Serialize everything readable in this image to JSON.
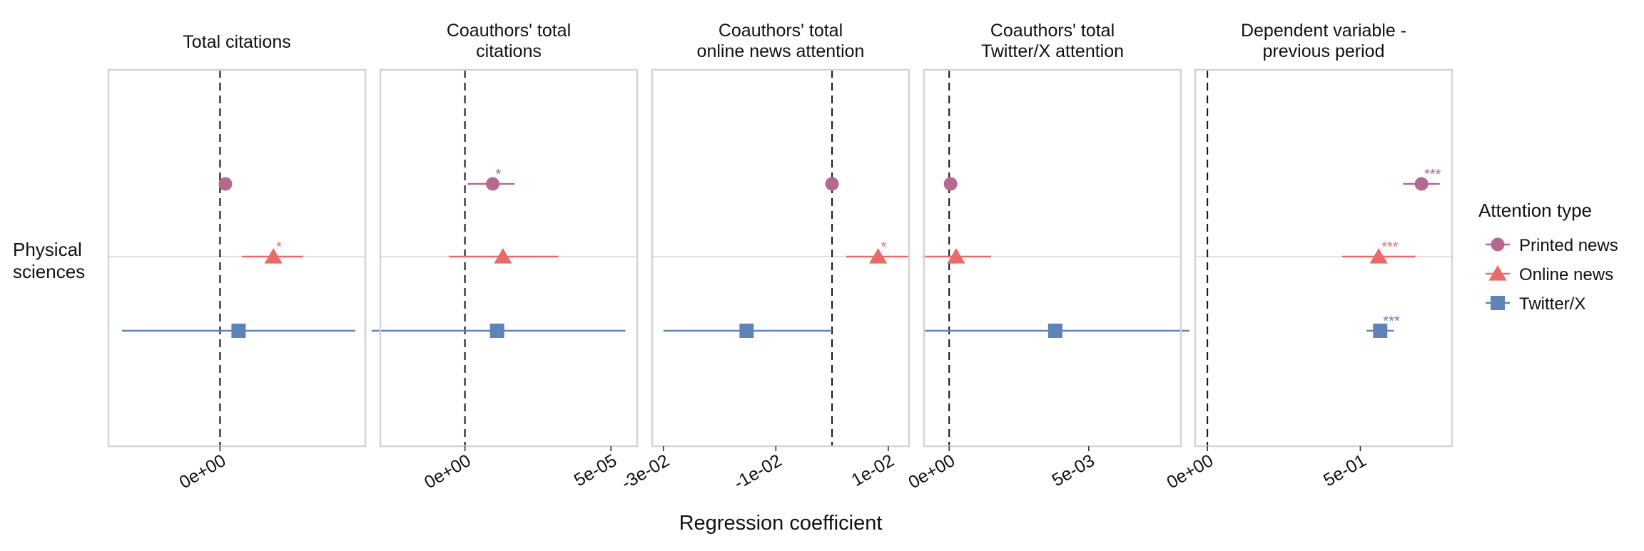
{
  "chart_data": {
    "type": "scatter",
    "subtype": "coefficient plot with error bars, faceted",
    "row_label": "Physical\nsciences",
    "xlabel": "Regression coefficient",
    "ylabel": "",
    "legend": {
      "title": "Attention type",
      "position": "right",
      "entries": [
        {
          "name": "Printed news",
          "color": "#b5698f",
          "marker": "circle"
        },
        {
          "name": "Online news",
          "color": "#ea6a6a",
          "marker": "triangle"
        },
        {
          "name": "Twitter/X",
          "color": "#5f83b6",
          "marker": "square"
        }
      ]
    },
    "reference_line": {
      "x": 0,
      "style": "dashed"
    },
    "grid": "horizontal line at row center",
    "facets": [
      {
        "title": "Total citations",
        "xlim": [
          -3.3e-05,
          4.3e-05
        ],
        "ticks": [
          {
            "value": 0,
            "label": "0e+00"
          }
        ],
        "series": [
          {
            "name": "Printed news",
            "estimate": 1.6e-06,
            "lower": 1.2e-06,
            "upper": 2e-06,
            "signif": ""
          },
          {
            "name": "Online news",
            "estimate": 1.58e-05,
            "lower": 6.5e-06,
            "upper": 2.45e-05,
            "signif": "*"
          },
          {
            "name": "Twitter/X",
            "estimate": 5.5e-06,
            "lower": -2.9e-05,
            "upper": 4e-05,
            "signif": ""
          }
        ]
      },
      {
        "title": "Coauthors' total\ncitations",
        "xlim": [
          -2.9e-05,
          5.9e-05
        ],
        "ticks": [
          {
            "value": 0,
            "label": "0e+00"
          },
          {
            "value": 5e-05,
            "label": "5e-05"
          }
        ],
        "series": [
          {
            "name": "Printed news",
            "estimate": 9.5e-06,
            "lower": 1e-06,
            "upper": 1.7e-05,
            "signif": "*"
          },
          {
            "name": "Online news",
            "estimate": 1.3e-05,
            "lower": -5.5e-06,
            "upper": 3.2e-05,
            "signif": ""
          },
          {
            "name": "Twitter/X",
            "estimate": 1.1e-05,
            "lower": -3.2e-05,
            "upper": 5.5e-05,
            "signif": ""
          }
        ]
      },
      {
        "title": "Coauthors' total\nonline news attention",
        "xlim": [
          -0.032,
          0.0137
        ],
        "ticks": [
          {
            "value": -0.03,
            "label": "-3e-02"
          },
          {
            "value": -0.01,
            "label": "-1e-02"
          },
          {
            "value": 0.01,
            "label": "1e-02"
          }
        ],
        "series": [
          {
            "name": "Printed news",
            "estimate": 0,
            "lower": -0.0003,
            "upper": 0.0003,
            "signif": ""
          },
          {
            "name": "Online news",
            "estimate": 0.0082,
            "lower": 0.0025,
            "upper": 0.0138,
            "signif": "*"
          },
          {
            "name": "Twitter/X",
            "estimate": -0.0152,
            "lower": -0.03,
            "upper": 0,
            "signif": ""
          }
        ]
      },
      {
        "title": "Coauthors' total\nTwitter/X attention",
        "xlim": [
          -0.0009,
          0.0083
        ],
        "ticks": [
          {
            "value": 0,
            "label": "0e+00"
          },
          {
            "value": 0.005,
            "label": "5e-03"
          }
        ],
        "series": [
          {
            "name": "Printed news",
            "estimate": 5e-05,
            "lower": 2e-05,
            "upper": 8e-05,
            "signif": ""
          },
          {
            "name": "Online news",
            "estimate": 0.00025,
            "lower": -0.00095,
            "upper": 0.0015,
            "signif": ""
          },
          {
            "name": "Twitter/X",
            "estimate": 0.0038,
            "lower": -0.0009,
            "upper": 0.0086,
            "signif": ""
          }
        ]
      },
      {
        "title": "Dependent variable -\nprevious period",
        "xlim": [
          -0.04,
          0.8
        ],
        "ticks": [
          {
            "value": 0,
            "label": "0e+00"
          },
          {
            "value": 0.5,
            "label": "5e-01"
          }
        ],
        "series": [
          {
            "name": "Printed news",
            "estimate": 0.7,
            "lower": 0.64,
            "upper": 0.76,
            "signif": "***"
          },
          {
            "name": "Online news",
            "estimate": 0.56,
            "lower": 0.44,
            "upper": 0.68,
            "signif": "***"
          },
          {
            "name": "Twitter/X",
            "estimate": 0.565,
            "lower": 0.52,
            "upper": 0.61,
            "signif": "***"
          }
        ]
      }
    ]
  }
}
